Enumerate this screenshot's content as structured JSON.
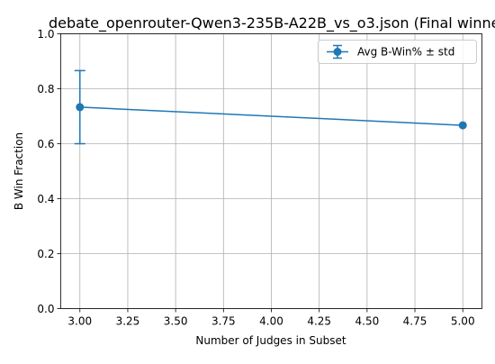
{
  "chart_data": {
    "type": "line",
    "title": "debate_openrouter-Qwen3-235B-A22B_vs_o3.json (Final winner",
    "xlabel": "Number of Judges in Subset",
    "ylabel": "B Win Fraction",
    "xlim": [
      2.9,
      5.1
    ],
    "ylim": [
      0,
      1.0
    ],
    "x_ticks": [
      3.0,
      3.25,
      3.5,
      3.75,
      4.0,
      4.25,
      4.5,
      4.75,
      5.0
    ],
    "x_tick_labels": [
      "3.00",
      "3.25",
      "3.50",
      "3.75",
      "4.00",
      "4.25",
      "4.50",
      "4.75",
      "5.00"
    ],
    "y_ticks": [
      0.0,
      0.2,
      0.4,
      0.6,
      0.8,
      1.0
    ],
    "y_tick_labels": [
      "0.0",
      "0.2",
      "0.4",
      "0.6",
      "0.8",
      "1.0"
    ],
    "grid": true,
    "legend_position": "top-right",
    "series": [
      {
        "name": "Avg B-Win% ± std",
        "color": "#1f77b4",
        "marker": "circle",
        "x": [
          3.0,
          5.0
        ],
        "y": [
          0.733,
          0.667
        ],
        "error": [
          0.133,
          0.0
        ]
      }
    ]
  }
}
